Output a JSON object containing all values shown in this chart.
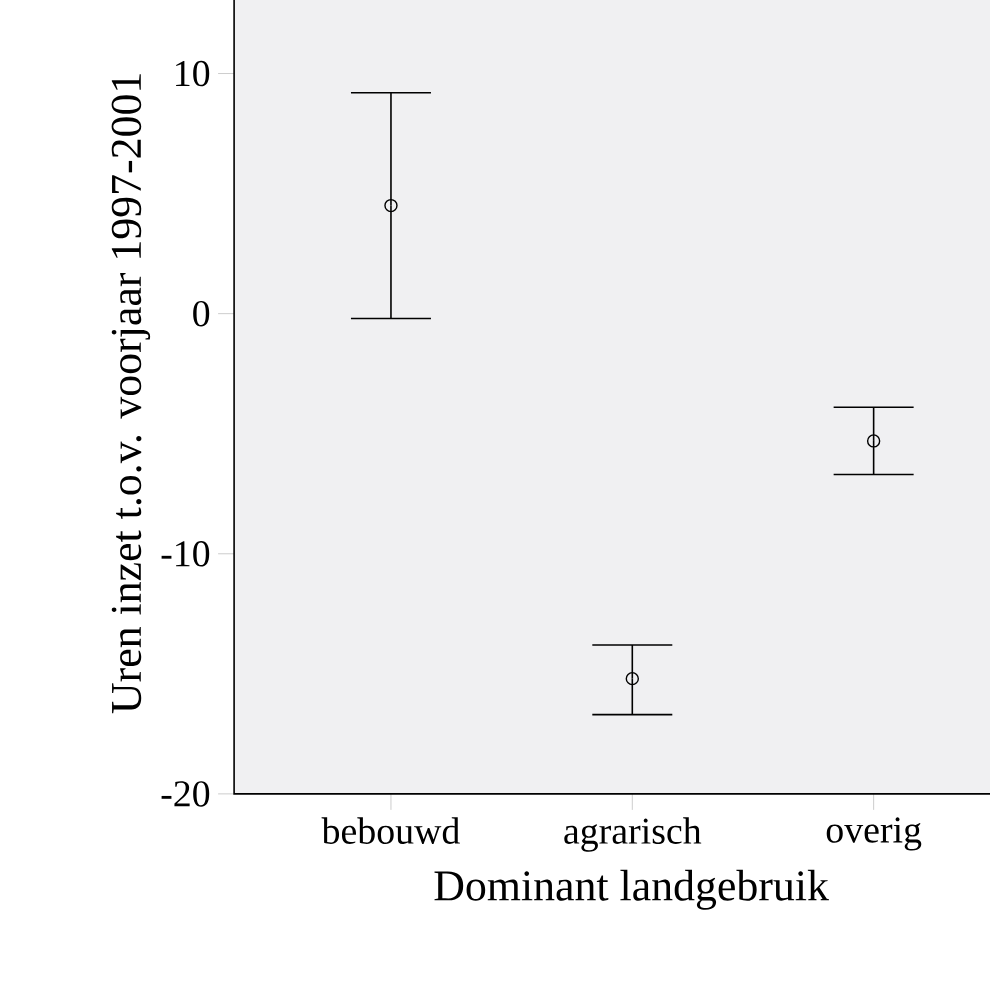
{
  "chart_data": {
    "type": "scatter",
    "xlabel": "Dominant landgebruik",
    "ylabel": "Uren inzet t.o.v. voorjaar 1997-2001",
    "categories": [
      "bebouwd",
      "agrarisch",
      "overig"
    ],
    "values": [
      4.5,
      -15.2,
      -5.3
    ],
    "errors": [
      [
        -0.2,
        9.2
      ],
      [
        -16.7,
        -13.8
      ],
      [
        -6.7,
        -3.9
      ]
    ],
    "color": "#000000",
    "marker": "circle",
    "ylim": [
      -20,
      13.4
    ],
    "yticks": [
      -20,
      -10,
      0,
      10
    ],
    "grid": false
  }
}
